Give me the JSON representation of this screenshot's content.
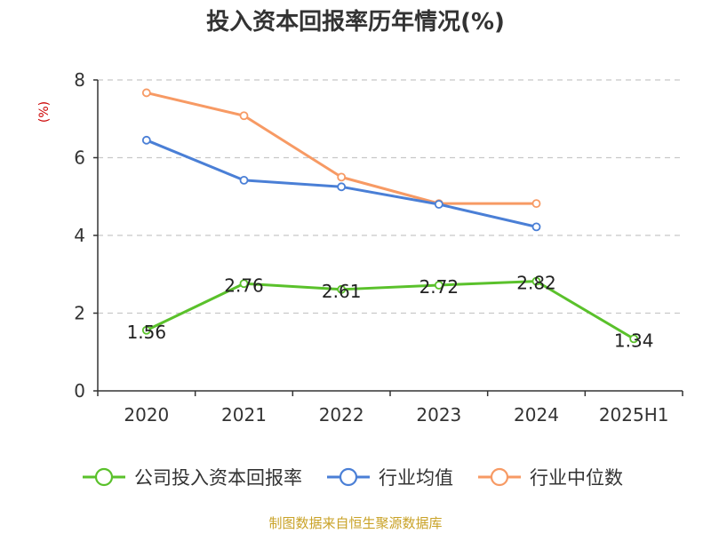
{
  "chart_data": {
    "type": "line",
    "title": "投入资本回报率历年情况(%)",
    "unit_label": "(%)",
    "categories": [
      "2020",
      "2021",
      "2022",
      "2023",
      "2024",
      "2025H1"
    ],
    "ylim": [
      0,
      8
    ],
    "yticks": [
      "0",
      "2",
      "4",
      "6",
      "8"
    ],
    "grid": "horizontal-dashed",
    "legend_position": "bottom",
    "series": [
      {
        "name": "公司投入资本回报率",
        "color": "#5ac12b",
        "values": [
          1.56,
          2.76,
          2.61,
          2.72,
          2.82,
          1.34
        ],
        "labels": [
          "1.56",
          "2.76",
          "2.61",
          "2.72",
          "2.82",
          "1.34"
        ],
        "show_labels": true
      },
      {
        "name": "行业均值",
        "color": "#4a7fd6",
        "values": [
          6.45,
          5.42,
          5.25,
          4.8,
          4.22,
          null
        ],
        "show_labels": false
      },
      {
        "name": "行业中位数",
        "color": "#f79a64",
        "values": [
          7.67,
          7.08,
          5.5,
          4.82,
          4.82,
          null
        ],
        "show_labels": false
      }
    ],
    "source": "制图数据来自恒生聚源数据库"
  }
}
